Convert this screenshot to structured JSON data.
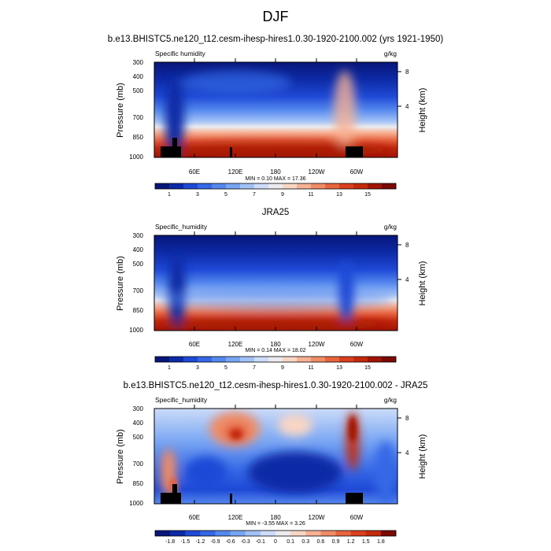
{
  "figure": {
    "title": "DJF"
  },
  "chart_data": [
    {
      "type": "heatmap",
      "title": "b.e13.BHISTC5.ne120_t12.cesm-ihesp-hires1.0.30-1920-2100.002 (yrs 1921-1950)",
      "left_label": "Specific humidity",
      "right_label": "g/kg",
      "xlabel": "",
      "ylabel": "Pressure (mb)",
      "y2label": "Height (km)",
      "x_ticks": [
        "60E",
        "120E",
        "180",
        "120W",
        "60W"
      ],
      "y_ticks": [
        "300",
        "400",
        "500",
        "700",
        "850",
        "1000"
      ],
      "y2_ticks": [
        "8",
        "4"
      ],
      "stats": "MIN =   0.10  MAX =   17.36",
      "colorbar": {
        "labels": [
          "1",
          "3",
          "5",
          "7",
          "9",
          "11",
          "13",
          "15"
        ],
        "colors": [
          "#08167a",
          "#0c2aa6",
          "#1f49d6",
          "#3568e6",
          "#5588ee",
          "#78a5f3",
          "#a2c2f7",
          "#ccdcf9",
          "#ecebee",
          "#f9d6c4",
          "#f7b194",
          "#f08c66",
          "#e8643f",
          "#d9401f",
          "#c42a0c",
          "#a01505",
          "#7a0a03"
        ]
      },
      "series": [
        {
          "name": "",
          "x": [
            0,
            20,
            35,
            60,
            90,
            120,
            150,
            180,
            210,
            240,
            270,
            285,
            300,
            330,
            360
          ],
          "values": [
            7.0,
            5.5,
            2.5,
            4.5,
            6.0,
            7.5,
            8.5,
            8.5,
            8.0,
            7.5,
            6.5,
            9.5,
            5.0,
            6.5,
            7.0
          ]
        }
      ]
    },
    {
      "type": "heatmap",
      "title": "JRA25",
      "left_label": "Specific_humidity",
      "right_label": "g/kg",
      "xlabel": "",
      "ylabel": "Pressure (mb)",
      "y2label": "Height (km)",
      "x_ticks": [
        "60E",
        "120E",
        "180",
        "120W",
        "60W"
      ],
      "y_ticks": [
        "300",
        "400",
        "500",
        "700",
        "850",
        "1000"
      ],
      "y2_ticks": [
        "8",
        "4"
      ],
      "stats": "MIN =   0.14  MAX =   18.02",
      "colorbar": {
        "labels": [
          "1",
          "3",
          "5",
          "7",
          "9",
          "11",
          "13",
          "15"
        ],
        "colors": [
          "#08167a",
          "#0c2aa6",
          "#1f49d6",
          "#3568e6",
          "#5588ee",
          "#78a5f3",
          "#a2c2f7",
          "#ccdcf9",
          "#ecebee",
          "#f9d6c4",
          "#f7b194",
          "#f08c66",
          "#e8643f",
          "#d9401f",
          "#c42a0c",
          "#a01505",
          "#7a0a03"
        ]
      },
      "series": [
        {
          "name": "",
          "x": [
            0,
            20,
            35,
            60,
            90,
            120,
            150,
            180,
            210,
            240,
            270,
            285,
            300,
            330,
            360
          ],
          "values": [
            7.0,
            5.0,
            2.5,
            4.5,
            6.0,
            6.5,
            7.0,
            6.5,
            6.0,
            5.5,
            6.0,
            8.0,
            6.0,
            7.0,
            7.0
          ]
        }
      ]
    },
    {
      "type": "heatmap",
      "title": "b.e13.BHISTC5.ne120_t12.cesm-ihesp-hires1.0.30-1920-2100.002 - JRA25",
      "left_label": "Specific_humidity",
      "right_label": "g/kg",
      "xlabel": "",
      "ylabel": "Pressure (mb)",
      "y2label": "Height (km)",
      "x_ticks": [
        "60E",
        "120E",
        "180",
        "120W",
        "60W"
      ],
      "y_ticks": [
        "300",
        "400",
        "500",
        "700",
        "850",
        "1000"
      ],
      "y2_ticks": [
        "8",
        "4"
      ],
      "stats": "MIN =  -3.55  MAX =   3.26",
      "colorbar": {
        "labels": [
          "-1.8",
          "-1.5",
          "-1.2",
          "-0.9",
          "-0.6",
          "-0.3",
          "-0.1",
          "0",
          "0.1",
          "0.3",
          "0.6",
          "0.9",
          "1.2",
          "1.5",
          "1.8"
        ],
        "colors": [
          "#08167a",
          "#0c2aa6",
          "#1f49d6",
          "#3568e6",
          "#5588ee",
          "#78a5f3",
          "#a2c2f7",
          "#ccdcf9",
          "#ecebee",
          "#f9d6c4",
          "#f7b194",
          "#f08c66",
          "#e8643f",
          "#d9401f",
          "#c42a0c",
          "#7a0a03"
        ]
      },
      "series": [
        {
          "name": "",
          "x": [
            0,
            20,
            35,
            60,
            90,
            120,
            150,
            180,
            210,
            240,
            270,
            285,
            300,
            330,
            360
          ],
          "values": [
            -0.3,
            0.6,
            1.2,
            -0.6,
            0.9,
            1.5,
            -1.5,
            -1.8,
            -1.2,
            -0.9,
            -0.6,
            1.8,
            -0.6,
            -0.3,
            -0.3
          ]
        }
      ]
    }
  ]
}
